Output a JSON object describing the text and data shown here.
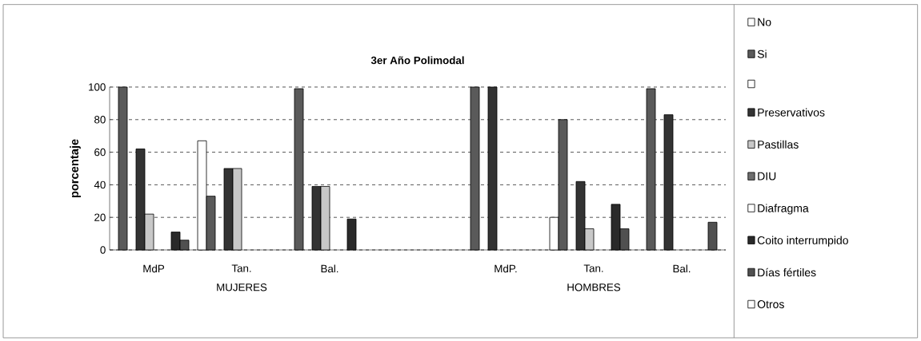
{
  "chart_data": {
    "type": "bar",
    "title": "3er Año Polimodal",
    "ylabel": "porcentaje",
    "categories": [
      "MdP",
      "Tan.",
      "Bal.",
      null,
      "MdP.",
      "Tan.",
      "Bal."
    ],
    "annotations": [
      "MUJERES",
      "HOMBRES"
    ],
    "series": [
      {
        "name": "No",
        "color": "#ffffff",
        "values": [
          null,
          67,
          null,
          null,
          null,
          20,
          null
        ]
      },
      {
        "name": "Si",
        "color": "#5a5a5a",
        "values": [
          100,
          33,
          99,
          null,
          100,
          80,
          99
        ]
      },
      {
        "color": "#ffffff",
        "values": [
          null,
          null,
          null,
          null,
          null,
          null,
          null
        ]
      },
      {
        "name": "Preservativos",
        "color": "#333333",
        "values": [
          62,
          50,
          39,
          null,
          100,
          42,
          83
        ]
      },
      {
        "name": "Pastillas",
        "color": "#c8c8c8",
        "values": [
          22,
          50,
          39,
          null,
          null,
          13,
          null
        ]
      },
      {
        "name": "DIU",
        "color": "#6e6e6e",
        "values": [
          null,
          null,
          null,
          null,
          null,
          null,
          null
        ]
      },
      {
        "name": "Diafragma",
        "color": "#ffffff",
        "values": [
          null,
          null,
          null,
          null,
          null,
          null,
          null
        ]
      },
      {
        "name": "Coito interrumpido",
        "color": "#2a2a2a",
        "values": [
          11,
          null,
          19,
          null,
          null,
          28,
          null
        ]
      },
      {
        "name": "Días fértiles",
        "color": "#505050",
        "values": [
          6,
          null,
          null,
          null,
          null,
          13,
          17
        ]
      },
      {
        "name": "Otros",
        "color": "#ffffff",
        "values": [
          null,
          null,
          null,
          null,
          null,
          null,
          null
        ]
      }
    ],
    "ylim": [
      0,
      100
    ],
    "yticks": [
      0,
      20,
      40,
      60,
      80,
      100
    ],
    "grid": "y",
    "legend": "right"
  }
}
